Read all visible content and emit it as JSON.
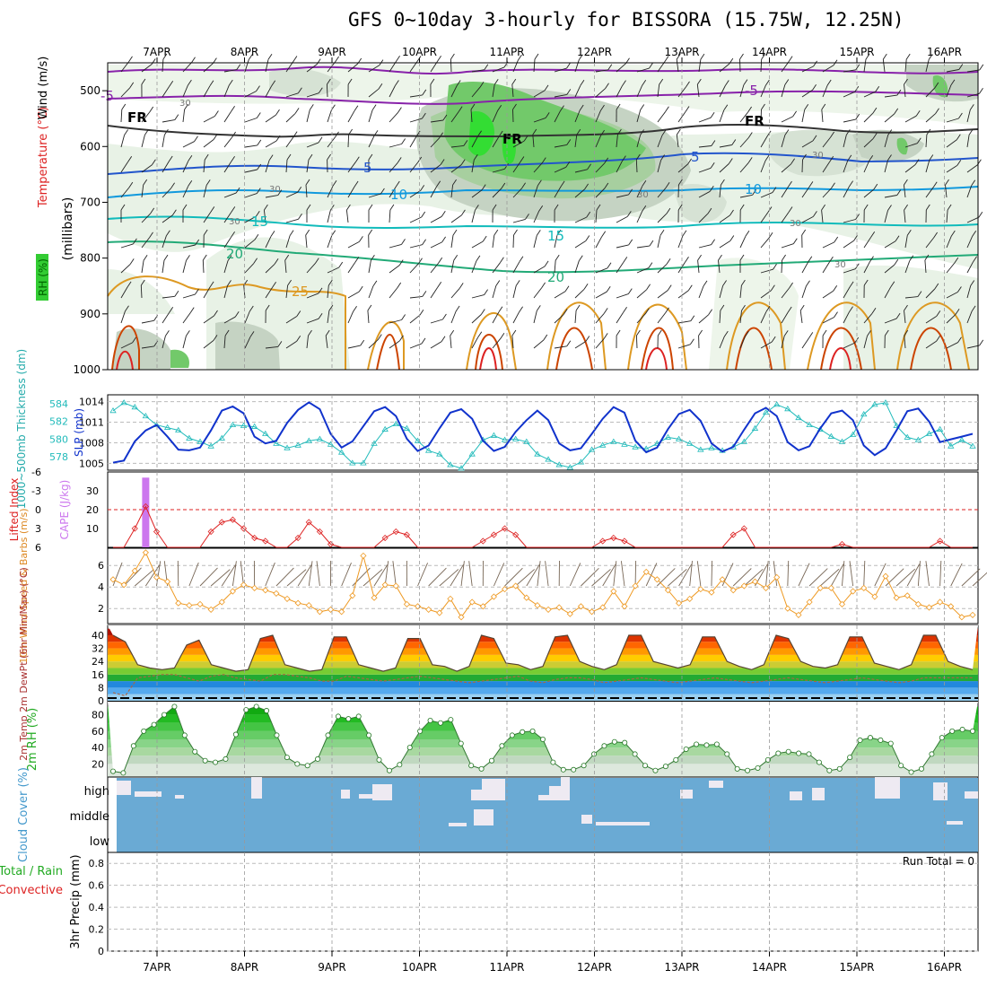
{
  "title": "GFS 0~10day 3-hourly for BISSORA (15.75W, 12.25N)",
  "dates": [
    "7APR",
    "8APR",
    "9APR",
    "10APR",
    "11APR",
    "12APR",
    "13APR",
    "14APR",
    "15APR",
    "16APR"
  ],
  "run_total": "Run Total = 0",
  "colors": {
    "slp": "#1133cc",
    "thickness": "#22bbbb",
    "li": "#dd2222",
    "cape": "#cc77ee",
    "wind": "#ee9922",
    "cloud": "#6aaad4",
    "rh": "#22bb22",
    "temp_ramp": [
      "#aa1100",
      "#dd3300",
      "#ff6600",
      "#ff9900",
      "#ffcc00"
    ]
  },
  "chart_data": [
    {
      "type": "heatmap",
      "name": "upper-air",
      "ylabel_parts": [
        "RH (%)",
        "Temperature (°C)",
        "Wind (m/s)",
        "(millibars)"
      ],
      "yticks": [
        "500",
        "600",
        "700",
        "800",
        "900",
        "1000"
      ],
      "ylim": [
        1000,
        450
      ],
      "isotherm_labels": [
        "-5",
        "-5",
        "FR",
        "FR",
        "FR",
        "5",
        "5",
        "10",
        "10",
        "15",
        "15",
        "20",
        "20",
        "25",
        "30",
        "30",
        "30",
        "30",
        "30",
        "30",
        "30"
      ],
      "rh_contour_label": "30"
    },
    {
      "type": "line",
      "name": "slp-thickness",
      "ylabel_left": "1000~500mb Thickness (dm)",
      "ylabel_right": "SLP (mb)",
      "yticks_left": [
        "578",
        "580",
        "582",
        "584"
      ],
      "yticks_right": [
        "1005",
        "1008",
        "1011",
        "1014"
      ],
      "series": [
        {
          "name": "SLP (mb)",
          "values": [
            1005.1,
            1005.4,
            1008.2,
            1009.8,
            1010.6,
            1008.9,
            1007.0,
            1006.9,
            1007.3,
            1009.8,
            1012.7,
            1013.3,
            1012.3,
            1008.9,
            1007.9,
            1008.3,
            1010.9,
            1012.8,
            1013.9,
            1012.9,
            1009.3,
            1007.3,
            1008.2,
            1010.4,
            1012.6,
            1013.2,
            1011.9,
            1008.6,
            1006.8,
            1007.6,
            1010.1,
            1012.4,
            1012.9,
            1011.5,
            1008.3,
            1006.8,
            1007.4,
            1009.6,
            1011.3,
            1012.7,
            1011.3,
            1007.9,
            1006.9,
            1007.2,
            1009.3,
            1011.5,
            1013.2,
            1012.4,
            1008.3,
            1006.6,
            1007.3,
            1010.0,
            1012.2,
            1012.8,
            1011.2,
            1007.9,
            1006.7,
            1007.4,
            1009.9,
            1012.3,
            1013.1,
            1011.9,
            1008.1,
            1006.9,
            1007.5,
            1010.1,
            1012.3,
            1012.7,
            1011.3,
            1007.6,
            1006.2,
            1007.2,
            1009.8,
            1012.6,
            1013.0,
            1011.1,
            1008.1,
            1008.5,
            1008.9,
            1009.3
          ],
          "ylim": [
            1004,
            1015
          ]
        },
        {
          "name": "1000~500mb Thickness (dm)",
          "values": [
            583.2,
            584.1,
            583.6,
            582.6,
            581.6,
            581.3,
            581.0,
            580.1,
            579.7,
            579.2,
            580.1,
            581.6,
            581.5,
            581.4,
            580.6,
            579.5,
            579.0,
            579.3,
            579.8,
            580.0,
            579.4,
            578.5,
            577.3,
            577.3,
            579.5,
            581.1,
            581.7,
            581.2,
            579.8,
            578.7,
            578.3,
            577.1,
            576.7,
            578.3,
            579.9,
            580.4,
            579.9,
            580.0,
            579.7,
            578.3,
            577.7,
            577.1,
            576.8,
            577.4,
            578.8,
            579.3,
            579.7,
            579.4,
            579.1,
            578.9,
            579.5,
            580.2,
            580.0,
            579.5,
            578.8,
            579.0,
            578.7,
            579.1,
            579.7,
            581.2,
            583.0,
            583.9,
            583.4,
            582.4,
            581.6,
            581.1,
            580.3,
            579.7,
            580.5,
            582.8,
            583.9,
            584.1,
            581.5,
            580.2,
            579.9,
            580.6,
            581.1,
            579.2,
            579.9,
            579.2
          ],
          "ylim": [
            576.5,
            585
          ]
        }
      ]
    },
    {
      "type": "line",
      "name": "lifted-index-cape",
      "ylabel_left": "Lifted Index",
      "ylabel_right": "CAPE (J/kg)",
      "yticks_left": [
        "-6",
        "-3",
        "0",
        "3",
        "6"
      ],
      "yticks_right": [
        "10",
        "20",
        "30"
      ],
      "series": [
        {
          "name": "Lifted Index",
          "values": [
            6,
            6,
            3.0,
            -0.5,
            3.5,
            6,
            6,
            6,
            6,
            3.5,
            2.0,
            1.6,
            3.0,
            4.5,
            5.0,
            6,
            6,
            4.5,
            2.0,
            3.5,
            5.5,
            6,
            6,
            6,
            6,
            4.5,
            3.5,
            4.0,
            6,
            6,
            6,
            6,
            6,
            6,
            5.0,
            4.0,
            3.0,
            4.0,
            6,
            6,
            6,
            6,
            6,
            6,
            6,
            5.0,
            4.5,
            5.0,
            6,
            6,
            6,
            6,
            6,
            6,
            6,
            6,
            6,
            4.0,
            3.0,
            6,
            6,
            6,
            6,
            6,
            6,
            6,
            6,
            5.5,
            6,
            6,
            6,
            6,
            6,
            6,
            6,
            6,
            5.0,
            6,
            6,
            6
          ],
          "ylim": [
            6,
            -6
          ]
        },
        {
          "name": "CAPE (J/kg)",
          "bars": [
            {
              "index": 3,
              "value": 37
            }
          ]
        }
      ]
    },
    {
      "type": "line",
      "name": "10m-wind",
      "ylabel": "10m Wind Speed & Barbs (m/s)",
      "yticks": [
        "2",
        "4",
        "6"
      ],
      "series": [
        {
          "name": "10m Wind Speed",
          "values": [
            4.7,
            4.2,
            5.5,
            7.2,
            4.9,
            4.5,
            2.5,
            2.3,
            2.4,
            1.9,
            2.6,
            3.6,
            4.2,
            3.9,
            3.7,
            3.4,
            2.9,
            2.5,
            2.3,
            1.7,
            1.9,
            1.7,
            3.2,
            6.9,
            3.0,
            4.2,
            4.1,
            2.4,
            2.2,
            1.9,
            1.6,
            2.9,
            1.2,
            2.6,
            2.2,
            3.1,
            3.8,
            4.1,
            3.0,
            2.3,
            1.9,
            2.1,
            1.5,
            2.2,
            1.7,
            2.1,
            3.6,
            2.2,
            4.1,
            5.4,
            4.7,
            3.7,
            2.5,
            2.9,
            3.8,
            3.5,
            4.7,
            3.7,
            4.1,
            4.5,
            3.9,
            4.9,
            2.0,
            1.4,
            2.6,
            3.9,
            3.9,
            2.4,
            3.6,
            3.9,
            3.1,
            5.0,
            3.0,
            3.2,
            2.4,
            2.1,
            2.6,
            2.2,
            1.2,
            1.4
          ],
          "ylim": [
            0.6,
            7.6
          ]
        }
      ]
    },
    {
      "type": "area",
      "name": "2m-temp",
      "ylabel": "2m Temp 2m DewPt (6hr Min/Max) (°C)",
      "yticks": [
        "0",
        "8",
        "16",
        "24",
        "32",
        "40"
      ],
      "series": [
        {
          "name": "2m Temp",
          "values": [
            40,
            36,
            22,
            20,
            19,
            20,
            34,
            37,
            22,
            20,
            18,
            19,
            38,
            40,
            22,
            20,
            18,
            19,
            39,
            39,
            22,
            20,
            18,
            20,
            38,
            38,
            22,
            21,
            18,
            21,
            40,
            38,
            23,
            22,
            19,
            21,
            39,
            40,
            24,
            21,
            19,
            22,
            40,
            40,
            24,
            22,
            20,
            22,
            39,
            39,
            24,
            21,
            19,
            22,
            40,
            38,
            24,
            21,
            20,
            22,
            39,
            39,
            23,
            21,
            19,
            22,
            40,
            40,
            24,
            21,
            19
          ],
          "ylim": [
            0,
            46
          ]
        },
        {
          "name": "2m DewPt",
          "values": [
            5,
            3,
            14,
            15,
            16,
            16,
            14,
            12,
            15,
            16,
            14,
            13,
            12,
            16,
            16,
            15,
            14,
            12,
            12,
            15,
            14,
            13,
            12,
            13,
            14,
            15,
            14,
            13,
            12,
            11,
            12,
            13,
            14,
            15,
            12,
            11,
            13,
            14,
            14,
            13,
            11,
            12,
            13,
            14,
            13,
            12,
            11,
            12,
            13,
            14,
            13,
            12,
            11,
            12,
            13,
            14,
            13,
            12,
            11,
            12,
            13,
            14,
            13,
            12,
            11,
            12,
            14,
            14,
            14,
            14,
            14
          ],
          "ylim": [
            0,
            46
          ]
        }
      ]
    },
    {
      "type": "area",
      "name": "2m-rh",
      "ylabel": "2m RH (%)",
      "yticks": [
        "20",
        "40",
        "60",
        "80"
      ],
      "series": [
        {
          "name": "2m RH",
          "values": [
            11,
            9,
            42,
            60,
            68,
            80,
            90,
            55,
            35,
            24,
            22,
            26,
            56,
            86,
            90,
            85,
            55,
            28,
            20,
            18,
            26,
            55,
            78,
            75,
            78,
            55,
            25,
            12,
            19,
            40,
            60,
            73,
            70,
            74,
            45,
            18,
            14,
            24,
            42,
            55,
            59,
            60,
            50,
            22,
            13,
            13,
            18,
            32,
            42,
            47,
            46,
            32,
            18,
            12,
            17,
            25,
            38,
            44,
            43,
            44,
            32,
            14,
            12,
            15,
            25,
            33,
            35,
            33,
            32,
            22,
            12,
            14,
            28,
            49,
            52,
            49,
            45,
            18,
            10,
            14,
            32,
            52,
            60,
            62,
            60
          ],
          "ylim": [
            4,
            96
          ]
        }
      ]
    },
    {
      "type": "bar",
      "name": "cloud-cover",
      "ylabel": "Cloud Cover (%)",
      "yticks": [
        "high",
        "middle",
        "low"
      ]
    },
    {
      "type": "bar",
      "name": "precip",
      "ylabel_parts": [
        "Total / Rain",
        "Convective",
        "3hr Precip (mm)"
      ],
      "yticks": [
        "0",
        "0.2",
        "0.4",
        "0.6",
        "0.8"
      ],
      "ylim": [
        0,
        0.9
      ]
    }
  ]
}
